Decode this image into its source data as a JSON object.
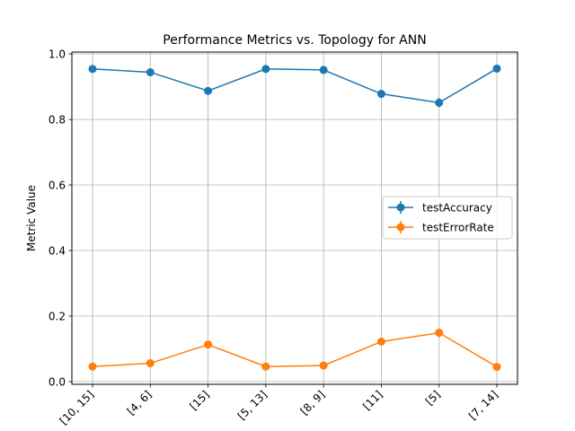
{
  "chart_data": {
    "type": "line",
    "title": "Performance Metrics vs. Topology for ANN",
    "xlabel": "",
    "ylabel": "Metric Value",
    "categories": [
      "[10, 15]",
      "[4, 6]",
      "[15]",
      "[5, 13]",
      "[8, 9]",
      "[11]",
      "[5]",
      "[7, 14]"
    ],
    "ylim": [
      0,
      1.0
    ],
    "yticks": [
      "0.0",
      "0.2",
      "0.4",
      "0.6",
      "0.8",
      "1.0"
    ],
    "grid": true,
    "legend_position": "center-right",
    "series": [
      {
        "name": "testAccuracy",
        "color": "#1f77b4",
        "values": [
          0.954,
          0.944,
          0.887,
          0.954,
          0.951,
          0.878,
          0.851,
          0.955
        ],
        "errors": [
          0.005,
          0.006,
          0.007,
          0.005,
          0.005,
          0.008,
          0.014,
          0.005
        ]
      },
      {
        "name": "testErrorRate",
        "color": "#ff7f0e",
        "values": [
          0.046,
          0.056,
          0.113,
          0.046,
          0.049,
          0.122,
          0.149,
          0.045
        ],
        "errors": [
          0.005,
          0.006,
          0.007,
          0.005,
          0.005,
          0.008,
          0.014,
          0.005
        ]
      }
    ]
  }
}
